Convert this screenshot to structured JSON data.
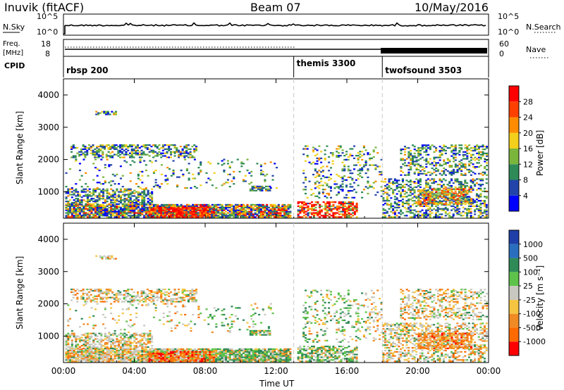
{
  "header": {
    "station": "Inuvik (fitACF)",
    "beam": "Beam 07",
    "date": "10/May/2016"
  },
  "top_panels": {
    "nsky_label": "N.Sky",
    "nsearch_label": "N.Search",
    "nsky_ticks": [
      "10^5",
      "10^0"
    ],
    "freq_label": "Freq.",
    "freq_unit": "[MHz]",
    "freq_ticks": [
      "18",
      "8"
    ],
    "nave_label": "Nave",
    "nave_ticks": [
      "60",
      "0"
    ],
    "cpid_label": "CPID"
  },
  "modes": [
    {
      "name": "rbsp 200",
      "start_hour": 0
    },
    {
      "name": "themis 3300",
      "start_hour": 13
    },
    {
      "name": "twofsound 3503",
      "start_hour": 18
    }
  ],
  "chart_data": [
    {
      "type": "heatmap",
      "title": "",
      "xlabel": "",
      "ylabel": "Slant Range [km]",
      "x_ticks": [
        "00:00",
        "04:00",
        "08:00",
        "12:00",
        "16:00",
        "20:00",
        "00:00"
      ],
      "x_range_hours": [
        0,
        24
      ],
      "y_ticks": [
        1000,
        2000,
        3000,
        4000
      ],
      "ylim": [
        180,
        4500
      ],
      "colorbar": {
        "label": "Power [dB]",
        "ticks": [
          "4",
          "8",
          "12",
          "16",
          "20",
          "24",
          "28"
        ],
        "colors": [
          "#0000ff",
          "#2244aa",
          "#2e8b57",
          "#7bb63c",
          "#f2d01b",
          "#ff8c00",
          "#ff4000",
          "#ff0000"
        ]
      },
      "mode_boundaries_hours": [
        13,
        18
      ]
    },
    {
      "type": "heatmap",
      "title": "",
      "xlabel": "Time UT",
      "ylabel": "Slant Range [km]",
      "x_ticks": [
        "00:00",
        "04:00",
        "08:00",
        "12:00",
        "16:00",
        "20:00",
        "00:00"
      ],
      "x_range_hours": [
        0,
        24
      ],
      "y_ticks": [
        1000,
        2000,
        3000,
        4000
      ],
      "ylim": [
        180,
        4500
      ],
      "colorbar": {
        "label": "Velocity [m s⁻¹]",
        "ticks": [
          "1000",
          "500",
          "100",
          "25",
          "-25",
          "-100",
          "-500",
          "-1000"
        ],
        "colors": [
          "#1e3ea8",
          "#2a6fbf",
          "#2e8b57",
          "#5ec34a",
          "#c8c8c0",
          "#f5c542",
          "#f08a24",
          "#ff6a00",
          "#ff0000"
        ]
      },
      "mode_boundaries_hours": [
        13,
        18
      ]
    }
  ]
}
